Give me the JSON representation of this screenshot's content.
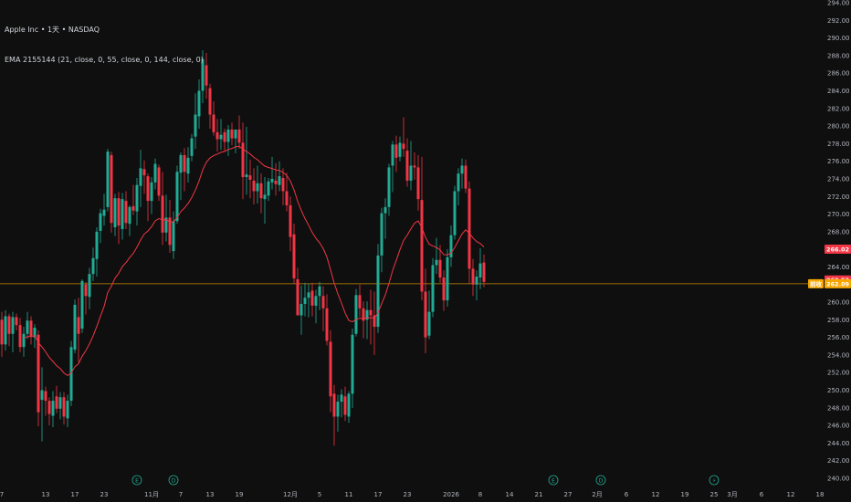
{
  "header": {
    "symbol_line": "Apple Inc • 1天 • NASDAQ",
    "indicator_line": "EMA 2155144 (21, close, 0, 55, close, 0, 144, close, 0)"
  },
  "colors": {
    "background": "#0f0f0f",
    "up": "#22ab94",
    "down": "#f23645",
    "ema": "#f23645",
    "price_line": "#f7a600"
  },
  "price_tags": {
    "ema_value": "266.02",
    "last_price": "262.52",
    "prev_close": "262.09",
    "prev_close_label": "前收"
  },
  "events": [
    {
      "label": "E",
      "index": 37,
      "name": "earnings-icon"
    },
    {
      "label": "D",
      "index": 47,
      "name": "dividend-icon"
    },
    {
      "label": "E",
      "index": 151,
      "name": "earnings-icon"
    },
    {
      "label": "D",
      "index": 164,
      "name": "dividend-icon"
    },
    {
      "label": "⚡",
      "index": 195,
      "name": "lightning-icon"
    }
  ],
  "chart_data": {
    "type": "candlestick",
    "title": "Apple Inc • 1天 • NASDAQ",
    "ylim": [
      240,
      294
    ],
    "yticks": [
      240,
      242,
      244,
      246,
      248,
      250,
      252,
      254,
      256,
      258,
      260,
      262,
      264,
      266,
      268,
      270,
      272,
      274,
      276,
      278,
      280,
      282,
      284,
      286,
      288,
      290,
      292,
      294
    ],
    "xticks": [
      {
        "label": "7",
        "index": 0
      },
      {
        "label": "13",
        "index": 12
      },
      {
        "label": "17",
        "index": 20
      },
      {
        "label": "23",
        "index": 28
      },
      {
        "label": "11月",
        "index": 41
      },
      {
        "label": "7",
        "index": 49
      },
      {
        "label": "13",
        "index": 57
      },
      {
        "label": "19",
        "index": 65
      },
      {
        "label": "12月",
        "index": 79
      },
      {
        "label": "5",
        "index": 87
      },
      {
        "label": "11",
        "index": 95
      },
      {
        "label": "17",
        "index": 103
      },
      {
        "label": "23",
        "index": 111
      },
      {
        "label": "2026",
        "index": 123
      },
      {
        "label": "8",
        "index": 131
      },
      {
        "label": "14",
        "index": 139
      },
      {
        "label": "21",
        "index": 147
      },
      {
        "label": "27",
        "index": 155
      },
      {
        "label": "2月",
        "index": 163
      },
      {
        "label": "6",
        "index": 171
      },
      {
        "label": "12",
        "index": 179
      },
      {
        "label": "19",
        "index": 187
      },
      {
        "label": "25",
        "index": 195
      },
      {
        "label": "3月",
        "index": 200
      },
      {
        "label": "6",
        "index": 208
      },
      {
        "label": "12",
        "index": 216
      },
      {
        "label": "18",
        "index": 224
      }
    ],
    "ema_value": 266.02,
    "last_price": 262.52,
    "prev_close": 262.09,
    "ohlc": [
      [
        258.0,
        258.9,
        253.8,
        255.2
      ],
      [
        255.2,
        259.1,
        254.5,
        258.4
      ],
      [
        258.4,
        258.7,
        255.0,
        256.4
      ],
      [
        256.4,
        258.9,
        254.3,
        258.3
      ],
      [
        258.3,
        258.7,
        256.8,
        257.4
      ],
      [
        257.4,
        258.2,
        254.3,
        254.9
      ],
      [
        254.9,
        257.2,
        253.8,
        256.4
      ],
      [
        256.4,
        258.9,
        255.8,
        257.9
      ],
      [
        257.9,
        258.4,
        255.2,
        256.1
      ],
      [
        256.0,
        257.5,
        254.8,
        257.1
      ],
      [
        256.3,
        256.8,
        245.9,
        247.5
      ],
      [
        248.9,
        252.6,
        244.2,
        250.0
      ],
      [
        249.9,
        250.4,
        247.1,
        248.8
      ],
      [
        248.8,
        249.2,
        246.0,
        247.3
      ],
      [
        247.1,
        249.9,
        245.8,
        248.8
      ],
      [
        249.3,
        250.5,
        247.4,
        247.9
      ],
      [
        247.9,
        249.8,
        246.7,
        249.2
      ],
      [
        249.2,
        249.8,
        246.1,
        247.0
      ],
      [
        246.8,
        249.5,
        245.8,
        248.8
      ],
      [
        248.8,
        255.6,
        248.2,
        254.9
      ],
      [
        254.6,
        260.3,
        254.2,
        259.7
      ],
      [
        258.3,
        260.5,
        253.2,
        256.4
      ],
      [
        257.0,
        262.6,
        256.5,
        262.4
      ],
      [
        262.0,
        262.3,
        258.6,
        260.7
      ],
      [
        260.6,
        263.9,
        259.2,
        263.2
      ],
      [
        263.2,
        266.2,
        262.4,
        265.0
      ],
      [
        264.9,
        268.5,
        262.9,
        268.0
      ],
      [
        268.1,
        270.6,
        266.7,
        270.1
      ],
      [
        269.8,
        272.3,
        268.7,
        270.5
      ],
      [
        270.8,
        277.4,
        270.3,
        277.1
      ],
      [
        276.7,
        277.1,
        267.9,
        269.0
      ],
      [
        268.5,
        272.3,
        267.5,
        271.8
      ],
      [
        271.8,
        272.5,
        266.6,
        268.7
      ],
      [
        268.3,
        272.4,
        267.1,
        271.7
      ],
      [
        271.5,
        272.6,
        268.3,
        269.0
      ],
      [
        268.9,
        271.0,
        267.5,
        270.8
      ],
      [
        270.9,
        273.3,
        269.9,
        270.4
      ],
      [
        270.3,
        274.1,
        268.7,
        273.3
      ],
      [
        273.2,
        277.3,
        270.8,
        275.2
      ],
      [
        275.1,
        276.1,
        272.3,
        274.4
      ],
      [
        274.3,
        274.6,
        269.2,
        271.5
      ],
      [
        271.5,
        274.2,
        270.0,
        273.6
      ],
      [
        273.6,
        276.3,
        272.8,
        275.7
      ],
      [
        275.3,
        275.6,
        271.5,
        272.1
      ],
      [
        272.1,
        274.8,
        266.5,
        267.9
      ],
      [
        267.9,
        272.2,
        266.9,
        269.6
      ],
      [
        269.6,
        271.6,
        265.6,
        266.5
      ],
      [
        265.8,
        270.3,
        264.9,
        269.2
      ],
      [
        269.2,
        275.5,
        268.9,
        274.8
      ],
      [
        274.7,
        277.0,
        271.6,
        276.7
      ],
      [
        276.7,
        277.5,
        272.6,
        274.8
      ],
      [
        274.6,
        277.6,
        273.6,
        276.4
      ],
      [
        276.6,
        279.1,
        276.0,
        278.6
      ],
      [
        278.8,
        283.7,
        277.4,
        281.3
      ],
      [
        281.1,
        285.3,
        279.7,
        284.0
      ],
      [
        284.0,
        288.6,
        282.6,
        287.6
      ],
      [
        286.9,
        288.3,
        283.1,
        284.6
      ],
      [
        284.3,
        284.8,
        279.7,
        281.3
      ],
      [
        281.3,
        282.8,
        278.9,
        279.3
      ],
      [
        279.3,
        280.8,
        277.1,
        278.5
      ],
      [
        278.5,
        280.8,
        277.3,
        279.0
      ],
      [
        279.3,
        279.7,
        277.2,
        278.2
      ],
      [
        278.2,
        280.1,
        276.6,
        279.6
      ],
      [
        279.6,
        280.4,
        277.8,
        278.6
      ],
      [
        278.6,
        279.3,
        276.9,
        279.6
      ],
      [
        279.6,
        281.2,
        277.4,
        278.1
      ],
      [
        278.1,
        280.4,
        271.7,
        274.2
      ],
      [
        274.2,
        279.9,
        272.2,
        274.5
      ],
      [
        274.4,
        276.2,
        271.8,
        273.9
      ],
      [
        273.8,
        275.2,
        271.1,
        272.6
      ],
      [
        272.6,
        275.5,
        271.2,
        273.5
      ],
      [
        273.5,
        274.6,
        270.1,
        271.8
      ],
      [
        271.7,
        274.2,
        268.9,
        272.2
      ],
      [
        272.1,
        274.1,
        271.5,
        273.7
      ],
      [
        273.6,
        276.5,
        272.8,
        274.0
      ],
      [
        273.8,
        275.8,
        272.1,
        273.4
      ],
      [
        273.3,
        276.0,
        272.6,
        274.3
      ],
      [
        274.1,
        275.2,
        271.0,
        272.6
      ],
      [
        272.6,
        274.7,
        270.3,
        271.0
      ],
      [
        271.0,
        272.0,
        265.8,
        267.4
      ],
      [
        267.7,
        268.9,
        262.1,
        262.7
      ],
      [
        262.6,
        263.9,
        258.7,
        258.5
      ],
      [
        258.5,
        261.9,
        256.3,
        259.8
      ],
      [
        259.8,
        262.2,
        258.4,
        260.5
      ],
      [
        260.5,
        262.1,
        258.3,
        261.1
      ],
      [
        261.3,
        262.2,
        258.4,
        259.6
      ],
      [
        259.6,
        261.4,
        257.6,
        260.7
      ],
      [
        260.7,
        262.3,
        259.1,
        261.8
      ],
      [
        260.7,
        261.8,
        256.7,
        259.3
      ],
      [
        259.3,
        260.9,
        255.1,
        255.6
      ],
      [
        255.5,
        256.8,
        247.5,
        249.3
      ],
      [
        249.6,
        250.6,
        243.7,
        247.0
      ],
      [
        247.0,
        249.5,
        245.3,
        248.7
      ],
      [
        248.7,
        250.1,
        246.9,
        249.5
      ],
      [
        249.3,
        250.4,
        246.5,
        247.2
      ],
      [
        247.0,
        249.9,
        246.3,
        249.6
      ],
      [
        249.6,
        257.0,
        248.0,
        256.3
      ],
      [
        256.4,
        261.5,
        256.1,
        260.8
      ],
      [
        260.8,
        262.0,
        258.3,
        259.3
      ],
      [
        259.3,
        260.1,
        255.9,
        257.9
      ],
      [
        258.0,
        260.1,
        255.8,
        259.1
      ],
      [
        259.1,
        261.4,
        255.2,
        258.5
      ],
      [
        258.5,
        261.2,
        254.0,
        257.2
      ],
      [
        257.2,
        266.6,
        256.5,
        265.3
      ],
      [
        265.3,
        270.7,
        263.4,
        270.1
      ],
      [
        270.1,
        271.8,
        267.2,
        270.8
      ],
      [
        270.8,
        275.7,
        269.8,
        275.3
      ],
      [
        275.5,
        278.3,
        272.5,
        277.9
      ],
      [
        277.9,
        278.9,
        274.8,
        276.4
      ],
      [
        276.5,
        278.8,
        276.0,
        278.1
      ],
      [
        278.0,
        281.0,
        276.5,
        277.4
      ],
      [
        277.2,
        278.6,
        273.1,
        273.8
      ],
      [
        273.8,
        278.3,
        272.7,
        275.5
      ],
      [
        275.5,
        277.0,
        273.9,
        275.3
      ],
      [
        275.3,
        276.7,
        270.4,
        271.7
      ],
      [
        271.6,
        276.5,
        260.2,
        261.2
      ],
      [
        261.2,
        263.8,
        254.2,
        256.0
      ],
      [
        256.2,
        261.3,
        255.8,
        258.9
      ],
      [
        258.9,
        265.0,
        258.3,
        264.2
      ],
      [
        264.2,
        267.3,
        263.2,
        264.8
      ],
      [
        264.8,
        266.5,
        262.2,
        262.8
      ],
      [
        262.8,
        263.6,
        259.0,
        260.2
      ],
      [
        260.2,
        266.0,
        259.5,
        265.1
      ],
      [
        265.1,
        268.7,
        264.0,
        267.6
      ],
      [
        267.6,
        273.2,
        267.1,
        272.6
      ],
      [
        272.6,
        275.2,
        271.0,
        274.6
      ],
      [
        274.6,
        276.3,
        272.9,
        275.5
      ],
      [
        275.5,
        276.2,
        272.4,
        272.9
      ],
      [
        272.9,
        273.7,
        262.1,
        263.8
      ],
      [
        263.8,
        264.9,
        260.7,
        262.0
      ],
      [
        262.0,
        263.6,
        260.2,
        262.9
      ],
      [
        262.8,
        266.1,
        261.5,
        264.4
      ],
      [
        264.5,
        265.4,
        261.7,
        262.3
      ]
    ]
  }
}
